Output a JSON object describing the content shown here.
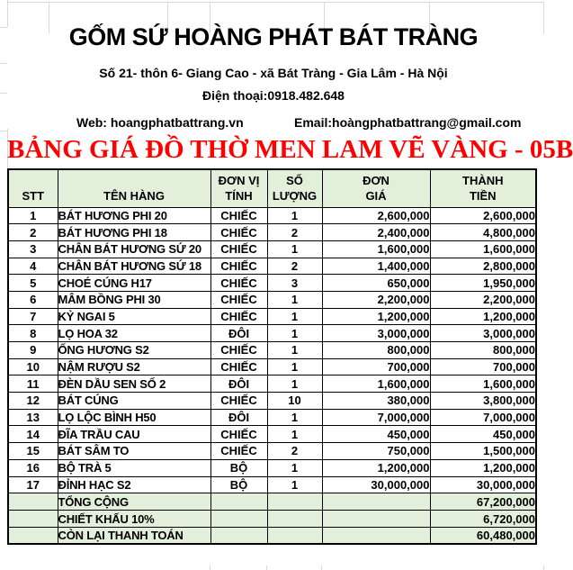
{
  "company": {
    "name": "GỐM SỨ HOÀNG PHÁT BÁT TRÀNG",
    "address": "Số 21- thôn 6- Giang Cao - xã Bát Tràng - Gia Lâm - Hà Nội",
    "phone": "Điện thoại:0918.482.648",
    "web": "Web: hoangphatbattrang.vn",
    "email": "Email:hoàngphatbattrang@gmail.com"
  },
  "title": "BẢNG GIÁ ĐỒ THỜ MEN LAM VẼ VÀNG - 05B",
  "colors": {
    "title_red": "#FF0000",
    "header_green": "#E2EFDA",
    "border_black": "#000000",
    "gridline_gray": "#D9D9D9"
  },
  "table": {
    "headers": {
      "stt": "STT",
      "name": "TÊN HÀNG",
      "unit": "ĐƠN VỊ\nTÍNH",
      "qty": "SỐ\nLƯỢNG",
      "price": "ĐƠN\nGIÁ",
      "total": "THÀNH\nTIỀN"
    },
    "rows": [
      {
        "stt": "1",
        "name": "BÁT HƯƠNG PHI 20",
        "unit": "CHIẾC",
        "qty": "1",
        "price": "2,600,000",
        "total": "2,600,000"
      },
      {
        "stt": "2",
        "name": "BÁT HƯƠNG PHI 18",
        "unit": "CHIẾC",
        "qty": "2",
        "price": "2,400,000",
        "total": "4,800,000"
      },
      {
        "stt": "3",
        "name": "CHÂN BÁT HƯƠNG SỨ 20",
        "unit": "CHIẾC",
        "qty": "1",
        "price": "1,600,000",
        "total": "1,600,000"
      },
      {
        "stt": "4",
        "name": "CHÂN BÁT HƯƠNG SỨ 18",
        "unit": "CHIẾC",
        "qty": "2",
        "price": "1,400,000",
        "total": "2,800,000"
      },
      {
        "stt": "5",
        "name": "CHOÉ CÚNG H17",
        "unit": "CHIẾC",
        "qty": "3",
        "price": "650,000",
        "total": "1,950,000"
      },
      {
        "stt": "6",
        "name": "MÂM BỒNG PHI 30",
        "unit": "CHIẾC",
        "qty": "1",
        "price": "2,200,000",
        "total": "2,200,000"
      },
      {
        "stt": "7",
        "name": "KỶ NGAI 5",
        "unit": "CHIẾC",
        "qty": "1",
        "price": "1,200,000",
        "total": "1,200,000"
      },
      {
        "stt": "8",
        "name": "LỌ HOA 32",
        "unit": "ĐÔI",
        "qty": "1",
        "price": "3,000,000",
        "total": "3,000,000"
      },
      {
        "stt": "9",
        "name": "ỐNG HƯƠNG S2",
        "unit": "CHIẾC",
        "qty": "1",
        "price": "800,000",
        "total": "800,000"
      },
      {
        "stt": "10",
        "name": "NẬM RƯỢU S2",
        "unit": "CHIẾC",
        "qty": "1",
        "price": "700,000",
        "total": "700,000"
      },
      {
        "stt": "11",
        "name": "ĐÈN DẦU SEN SỐ 2",
        "unit": "ĐÔI",
        "qty": "1",
        "price": "1,600,000",
        "total": "1,600,000"
      },
      {
        "stt": "12",
        "name": "BÁT CÚNG",
        "unit": "CHIẾC",
        "qty": "10",
        "price": "380,000",
        "total": "3,800,000"
      },
      {
        "stt": "13",
        "name": "LỌ LỘC BÌNH H50",
        "unit": "ĐÔI",
        "qty": "1",
        "price": "7,000,000",
        "total": "7,000,000"
      },
      {
        "stt": "14",
        "name": "ĐĨA TRẦU CAU",
        "unit": "CHIẾC",
        "qty": "1",
        "price": "450,000",
        "total": "450,000"
      },
      {
        "stt": "15",
        "name": "BÁT SÂM TO",
        "unit": "CHIẾC",
        "qty": "2",
        "price": "750,000",
        "total": "1,500,000"
      },
      {
        "stt": "16",
        "name": "BỘ TRÀ 5",
        "unit": "BỘ",
        "qty": "1",
        "price": "1,200,000",
        "total": "1,200,000"
      },
      {
        "stt": "17",
        "name": "ĐỈNH HẠC S2",
        "unit": "BỘ",
        "qty": "1",
        "price": "30,000,000",
        "total": "30,000,000"
      }
    ],
    "summary": [
      {
        "label": "TỔNG CỘNG",
        "value": "67,200,000"
      },
      {
        "label": "CHIẾT KHẤU 10%",
        "value": "6,720,000"
      },
      {
        "label": "CÒN LẠI THANH TOÁN",
        "value": "60,480,000"
      }
    ]
  }
}
